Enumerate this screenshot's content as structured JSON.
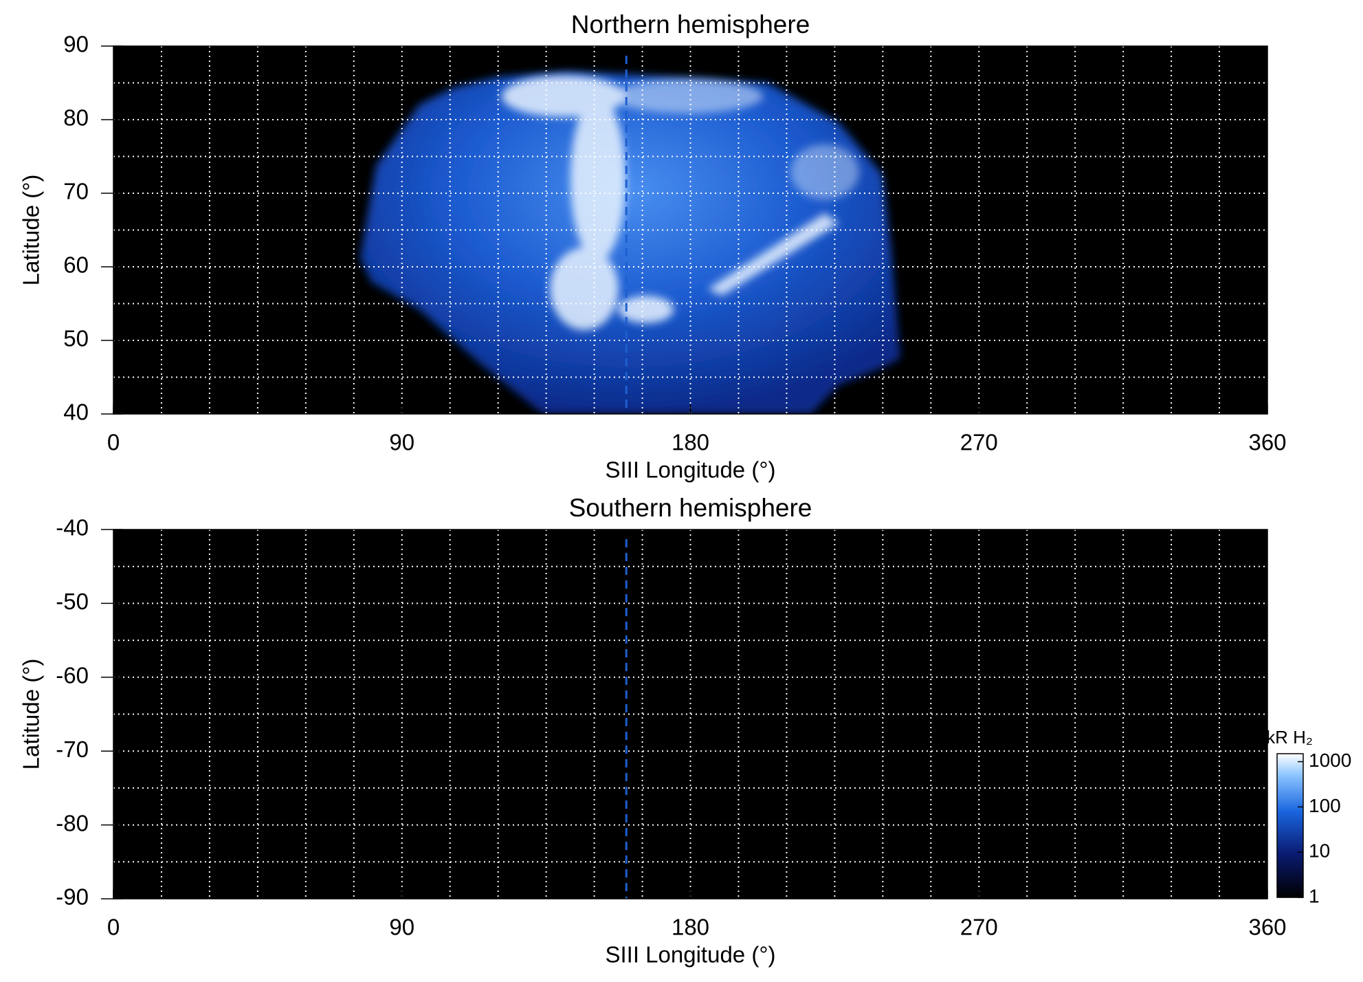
{
  "chart_data": [
    {
      "type": "map",
      "title": "Northern hemisphere",
      "xlabel": "SIII Longitude (°)",
      "ylabel": "Latitude (°)",
      "xlim": [
        0,
        360
      ],
      "xticks": [
        0,
        90,
        180,
        270,
        360
      ],
      "ylim": [
        40,
        90
      ],
      "yticks": [
        40,
        50,
        60,
        70,
        80,
        90
      ],
      "grid": true,
      "xgrid": [
        15,
        30,
        45,
        60,
        75,
        90,
        105,
        120,
        135,
        150,
        165,
        180,
        195,
        210,
        225,
        240,
        255,
        270,
        285,
        300,
        315,
        330,
        345
      ],
      "ygrid": [
        45,
        50,
        55,
        60,
        65,
        70,
        75,
        80,
        85
      ],
      "reference_longitude": 160,
      "reference_color": "#1f5fd0"
    },
    {
      "type": "map",
      "title": "Southern hemisphere",
      "xlabel": "SIII Longitude (°)",
      "ylabel": "Latitude (°)",
      "xlim": [
        0,
        360
      ],
      "xticks": [
        0,
        90,
        180,
        270,
        360
      ],
      "ylim": [
        -90,
        -40
      ],
      "yticks": [
        -90,
        -80,
        -70,
        -60,
        -50,
        -40
      ],
      "grid": true,
      "xgrid": [
        15,
        30,
        45,
        60,
        75,
        90,
        105,
        120,
        135,
        150,
        165,
        180,
        195,
        210,
        225,
        240,
        255,
        270,
        285,
        300,
        315,
        330,
        345
      ],
      "ygrid": [
        -85,
        -80,
        -75,
        -70,
        -65,
        -60,
        -55,
        -50,
        -45
      ],
      "reference_longitude": 160,
      "reference_color": "#1f5fd0",
      "colorbar": {
        "label": "kR H₂",
        "log": true,
        "clim": [
          1,
          1500
        ],
        "ticks": [
          1,
          10,
          100,
          1000
        ]
      }
    }
  ]
}
